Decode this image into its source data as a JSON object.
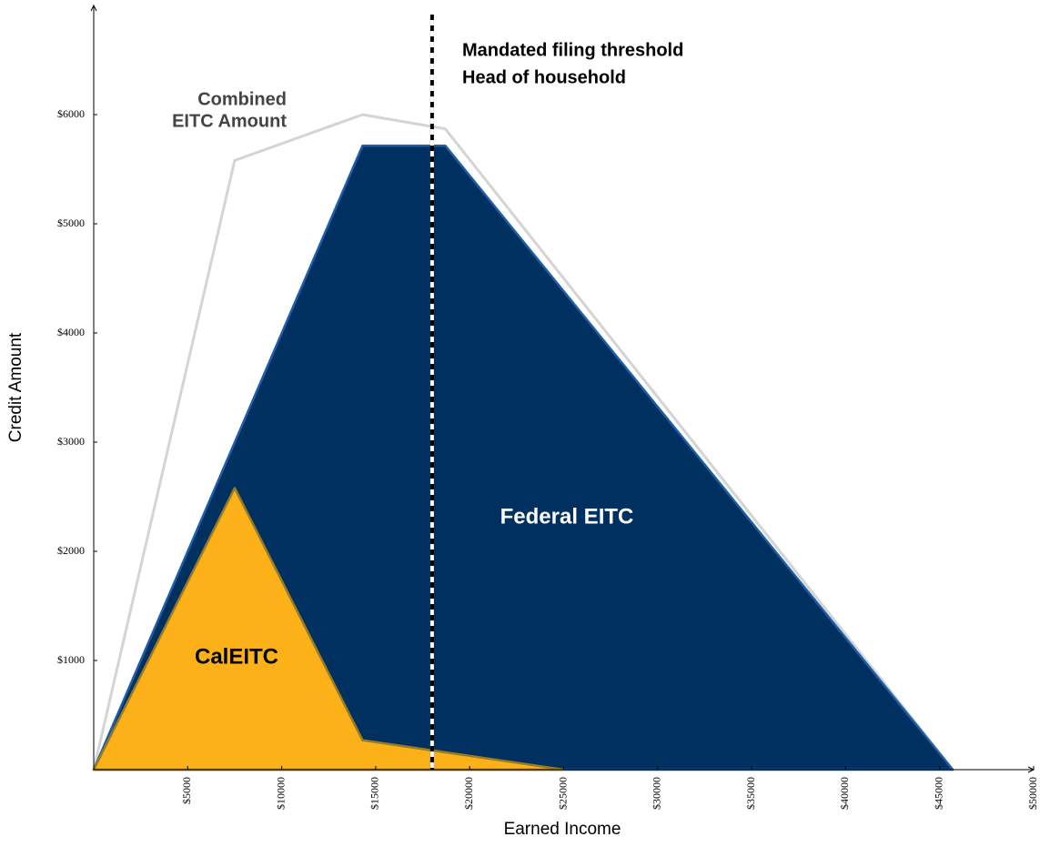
{
  "chart_data": {
    "type": "area",
    "x_label": "Earned Income",
    "y_label": "Credit Amount",
    "xlim": [
      0,
      50000
    ],
    "ylim": [
      0,
      7000
    ],
    "xticks": [
      {
        "value": 5000,
        "label": "$5000"
      },
      {
        "value": 10000,
        "label": "$10000"
      },
      {
        "value": 15000,
        "label": "$15000"
      },
      {
        "value": 20000,
        "label": "$20000"
      },
      {
        "value": 25000,
        "label": "$25000"
      },
      {
        "value": 30000,
        "label": "$30000"
      },
      {
        "value": 35000,
        "label": "$35000"
      },
      {
        "value": 40000,
        "label": "$40000"
      },
      {
        "value": 45000,
        "label": "$45000"
      },
      {
        "value": 50000,
        "label": "$50000"
      }
    ],
    "yticks": [
      {
        "value": 1000,
        "label": "$1000"
      },
      {
        "value": 2000,
        "label": "$2000"
      },
      {
        "value": 3000,
        "label": "$3000"
      },
      {
        "value": 4000,
        "label": "$4000"
      },
      {
        "value": 5000,
        "label": "$5000"
      },
      {
        "value": 6000,
        "label": "$6000"
      }
    ],
    "series": [
      {
        "name": "Federal EITC",
        "color": "#00305f",
        "edge": "#1c5fa8",
        "fill": true,
        "x": [
          0,
          14300,
          18700,
          45700
        ],
        "values": [
          0,
          5716,
          5716,
          0
        ]
      },
      {
        "name": "CalEITC",
        "color": "#fbb117",
        "edge": "#9a7b22",
        "fill": true,
        "x": [
          0,
          7500,
          14300,
          25000
        ],
        "values": [
          0,
          2580,
          270,
          0
        ]
      },
      {
        "name": "Combined EITC Amount",
        "color": "#d4d4d4",
        "fill": false,
        "x": [
          0,
          7500,
          14300,
          18700,
          45700
        ],
        "values": [
          0,
          5580,
          6000,
          5870,
          0
        ]
      }
    ],
    "threshold_x": 18000,
    "annotations": {
      "combined": [
        "Combined",
        "EITC Amount"
      ],
      "threshold": [
        "Mandated filing threshold",
        "Head of household"
      ],
      "federal": "Federal EITC",
      "cal": "CalEITC"
    }
  }
}
